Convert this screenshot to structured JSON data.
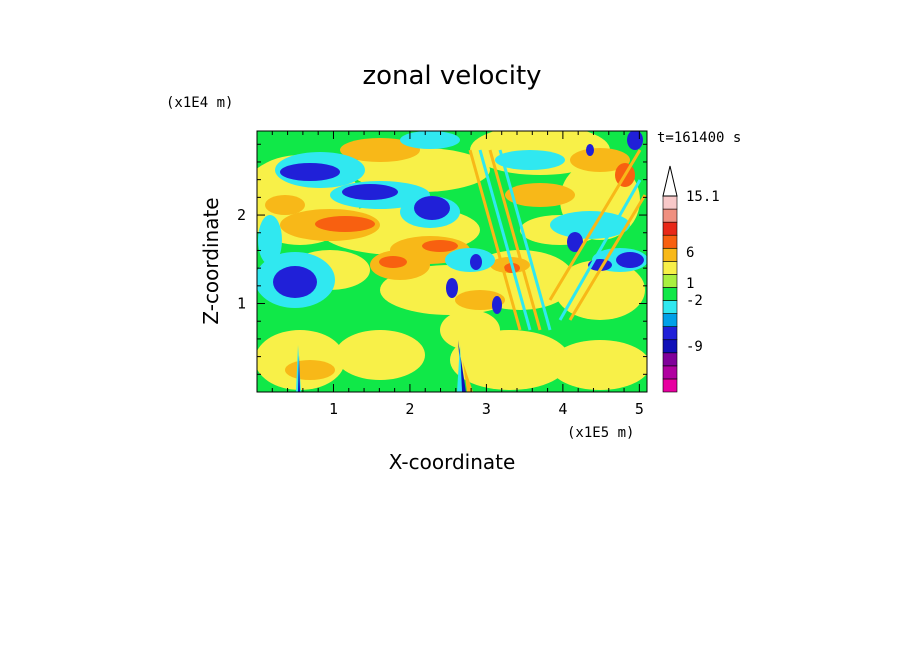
{
  "chart_data": {
    "type": "heatmap",
    "title": "zonal velocity",
    "xlabel": "X-coordinate",
    "ylabel": "Z-coordinate",
    "x_unit": "(x1E5 m)",
    "y_unit": "(x1E4 m)",
    "time_label": "t=161400 s",
    "xlim": [
      0,
      5.1
    ],
    "ylim": [
      0,
      2.95
    ],
    "x_ticks": [
      "1",
      "2",
      "3",
      "4",
      "5"
    ],
    "y_ticks": [
      "1",
      "2"
    ],
    "colorbar": {
      "labels": [
        "15.1",
        "6",
        "1",
        "-2",
        "-9"
      ],
      "colors": [
        "#e800a0",
        "#b000a0",
        "#80009a",
        "#1010b8",
        "#2020d8",
        "#00a0e8",
        "#30e8f0",
        "#10e848",
        "#a8f040",
        "#f8f048",
        "#f8b818",
        "#f86010",
        "#e82818",
        "#f09080",
        "#f8c8c8"
      ]
    },
    "features": [
      {
        "x": 0.5,
        "z": 0.3,
        "note": "blue/cyan spike"
      },
      {
        "x": 2.68,
        "z": 0.4,
        "note": "strong negative spike"
      }
    ]
  },
  "colors": {
    "strong_negative": "#e800a0",
    "negative": "#1c2fd8",
    "near_zero": "#10e848",
    "positive": "#f8f048",
    "strong_positive": "#e82818"
  }
}
